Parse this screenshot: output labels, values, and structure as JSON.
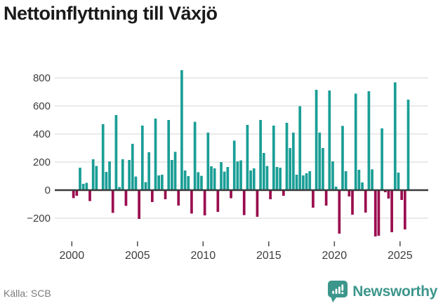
{
  "title": "Nettoinflyttning till Växjö",
  "source": "Källa: SCB",
  "branding": {
    "name": "Newsworthy",
    "icon": "newsworthy-bubble-chart-icon"
  },
  "colors": {
    "positive": "#1A9E96",
    "negative": "#9A0D4F",
    "grid": "#E4E4E4",
    "zero_axis": "#3A3A3A",
    "axis_label": "#3D3D3D",
    "title": "#1A1A1A",
    "source_text": "#7A7A7A",
    "brand": "#3D968C",
    "background": "#FFFFFF"
  },
  "chart_data": {
    "type": "bar",
    "title": "Nettoinflyttning till Växjö",
    "x_unit": "quarter",
    "start": "2000-Q1",
    "end": "2025-Q3",
    "xlabel": "",
    "ylabel": "",
    "x_tick_labels": [
      "2000",
      "2005",
      "2010",
      "2015",
      "2020",
      "2025"
    ],
    "y_ticks": [
      -200,
      0,
      200,
      400,
      600,
      800
    ],
    "ylim": [
      -360,
      870
    ],
    "grid": "horizontal",
    "legend": "none",
    "series": [
      {
        "name": "Nettoinflyttning",
        "values": [
          -57,
          -40,
          160,
          45,
          52,
          -78,
          220,
          172,
          5,
          470,
          130,
          205,
          -162,
          535,
          22,
          220,
          -112,
          215,
          330,
          97,
          -205,
          460,
          57,
          270,
          -85,
          510,
          105,
          110,
          -65,
          500,
          215,
          273,
          -110,
          855,
          140,
          100,
          -167,
          487,
          128,
          102,
          -180,
          410,
          170,
          155,
          -155,
          200,
          132,
          165,
          -58,
          353,
          205,
          212,
          -178,
          465,
          140,
          155,
          -190,
          500,
          265,
          172,
          -65,
          460,
          165,
          160,
          -40,
          480,
          300,
          410,
          110,
          598,
          105,
          120,
          135,
          -125,
          715,
          410,
          300,
          -110,
          710,
          205,
          25,
          -310,
          458,
          135,
          -45,
          -175,
          688,
          145,
          55,
          -160,
          705,
          148,
          -330,
          -325,
          440,
          -15,
          -60,
          -300,
          768,
          125,
          -70,
          -280,
          645
        ]
      }
    ]
  }
}
